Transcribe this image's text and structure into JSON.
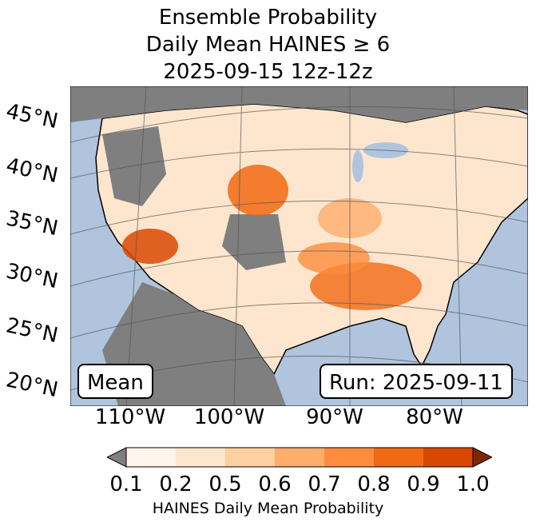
{
  "title": {
    "line1": "Ensemble Probability",
    "line2": "Daily Mean HAINES ≥ 6",
    "line3": "2025-09-15 12z-12z"
  },
  "map": {
    "lat_labels": [
      "45°N",
      "40°N",
      "35°N",
      "30°N",
      "25°N",
      "20°N"
    ],
    "lon_labels": [
      "110°W",
      "100°W",
      "90°W",
      "80°W"
    ],
    "mean_label": "Mean",
    "run_label": "Run: 2025-09-11",
    "ocean_color": "#b0c4de",
    "missing_color": "#7f7f7f"
  },
  "colorbar": {
    "ticks": [
      "0.1",
      "0.2",
      "0.5",
      "0.6",
      "0.7",
      "0.8",
      "0.9",
      "1.0"
    ],
    "colors": [
      "#fff5eb",
      "#fee6ce",
      "#fdd0a2",
      "#fdae6b",
      "#fd8d3c",
      "#f16913",
      "#d94801",
      "#a63603"
    ],
    "under_color": "#7f7f7f",
    "over_color": "#7f2704",
    "label": "HAINES Daily Mean Probability"
  }
}
